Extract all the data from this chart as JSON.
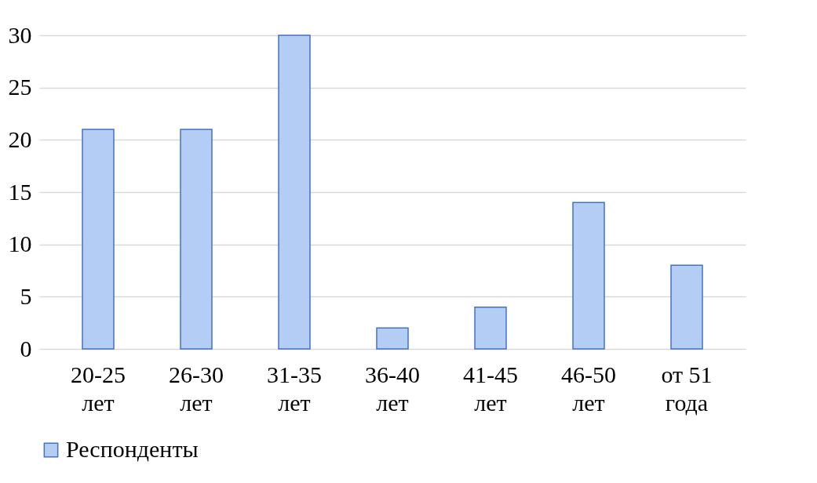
{
  "chart_data": {
    "type": "bar",
    "categories": [
      "20-25 лет",
      "26-30 лет",
      "31-35 лет",
      "36-40 лет",
      "41-45 лет",
      "46-50 лет",
      "от 51 года"
    ],
    "series": [
      {
        "name": "Респонденты",
        "color": "#b3cdf5",
        "values": [
          21,
          21,
          30,
          2,
          4,
          14,
          8
        ]
      }
    ],
    "ylim": [
      0,
      30
    ],
    "yticks": [
      0,
      5,
      10,
      15,
      20,
      25,
      30
    ],
    "grid": "y",
    "legend": "bottom"
  }
}
